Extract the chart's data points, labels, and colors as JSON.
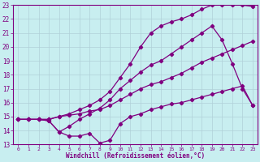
{
  "xlabel": "Windchill (Refroidissement éolien,°C)",
  "background_color": "#c8eef0",
  "line_color": "#800080",
  "grid_color": "#b0d0d8",
  "xlim": [
    -0.5,
    23.5
  ],
  "ylim": [
    13,
    23
  ],
  "xticks": [
    0,
    1,
    2,
    3,
    4,
    5,
    6,
    7,
    8,
    9,
    10,
    11,
    12,
    13,
    14,
    15,
    16,
    17,
    18,
    19,
    20,
    21,
    22,
    23
  ],
  "yticks": [
    13,
    14,
    15,
    16,
    17,
    18,
    19,
    20,
    21,
    22,
    23
  ],
  "series": [
    {
      "x": [
        0,
        1,
        2,
        3,
        4,
        5,
        6,
        7,
        8,
        9,
        10,
        11,
        12,
        13,
        14,
        15,
        16,
        17,
        18,
        19,
        20,
        21,
        22,
        23
      ],
      "y": [
        14.8,
        14.8,
        14.8,
        14.7,
        13.9,
        13.6,
        13.6,
        13.8,
        13.1,
        13.3,
        14.5,
        15.0,
        15.2,
        15.5,
        15.7,
        15.9,
        16.0,
        16.2,
        16.4,
        16.6,
        16.8,
        17.0,
        17.2,
        15.8
      ]
    },
    {
      "x": [
        0,
        1,
        2,
        3,
        4,
        5,
        6,
        7,
        8,
        9,
        10,
        11,
        12,
        13,
        14,
        15,
        16,
        17,
        18,
        19,
        20,
        21,
        22,
        23
      ],
      "y": [
        14.8,
        14.8,
        14.8,
        14.8,
        15.0,
        15.1,
        15.2,
        15.4,
        15.5,
        15.8,
        16.2,
        16.6,
        17.0,
        17.3,
        17.5,
        17.8,
        18.1,
        18.5,
        18.9,
        19.2,
        19.5,
        19.8,
        20.1,
        20.4
      ]
    },
    {
      "x": [
        0,
        1,
        2,
        3,
        4,
        5,
        6,
        7,
        8,
        9,
        10,
        11,
        12,
        13,
        14,
        15,
        16,
        17,
        18,
        19,
        20,
        21,
        22,
        23
      ],
      "y": [
        14.8,
        14.8,
        14.8,
        14.7,
        13.9,
        14.3,
        14.8,
        15.2,
        15.6,
        16.2,
        17.0,
        17.6,
        18.2,
        18.7,
        19.0,
        19.5,
        20.0,
        20.5,
        21.0,
        21.5,
        20.5,
        18.8,
        17.0,
        15.8
      ]
    },
    {
      "x": [
        0,
        1,
        2,
        3,
        4,
        5,
        6,
        7,
        8,
        9,
        10,
        11,
        12,
        13,
        14,
        15,
        16,
        17,
        18,
        19,
        20,
        21,
        22,
        23
      ],
      "y": [
        14.8,
        14.8,
        14.8,
        14.8,
        15.0,
        15.2,
        15.5,
        15.8,
        16.2,
        16.8,
        17.8,
        18.8,
        20.0,
        21.0,
        21.5,
        21.8,
        22.0,
        22.3,
        22.7,
        23.0,
        23.0,
        23.0,
        23.0,
        22.9
      ]
    }
  ]
}
